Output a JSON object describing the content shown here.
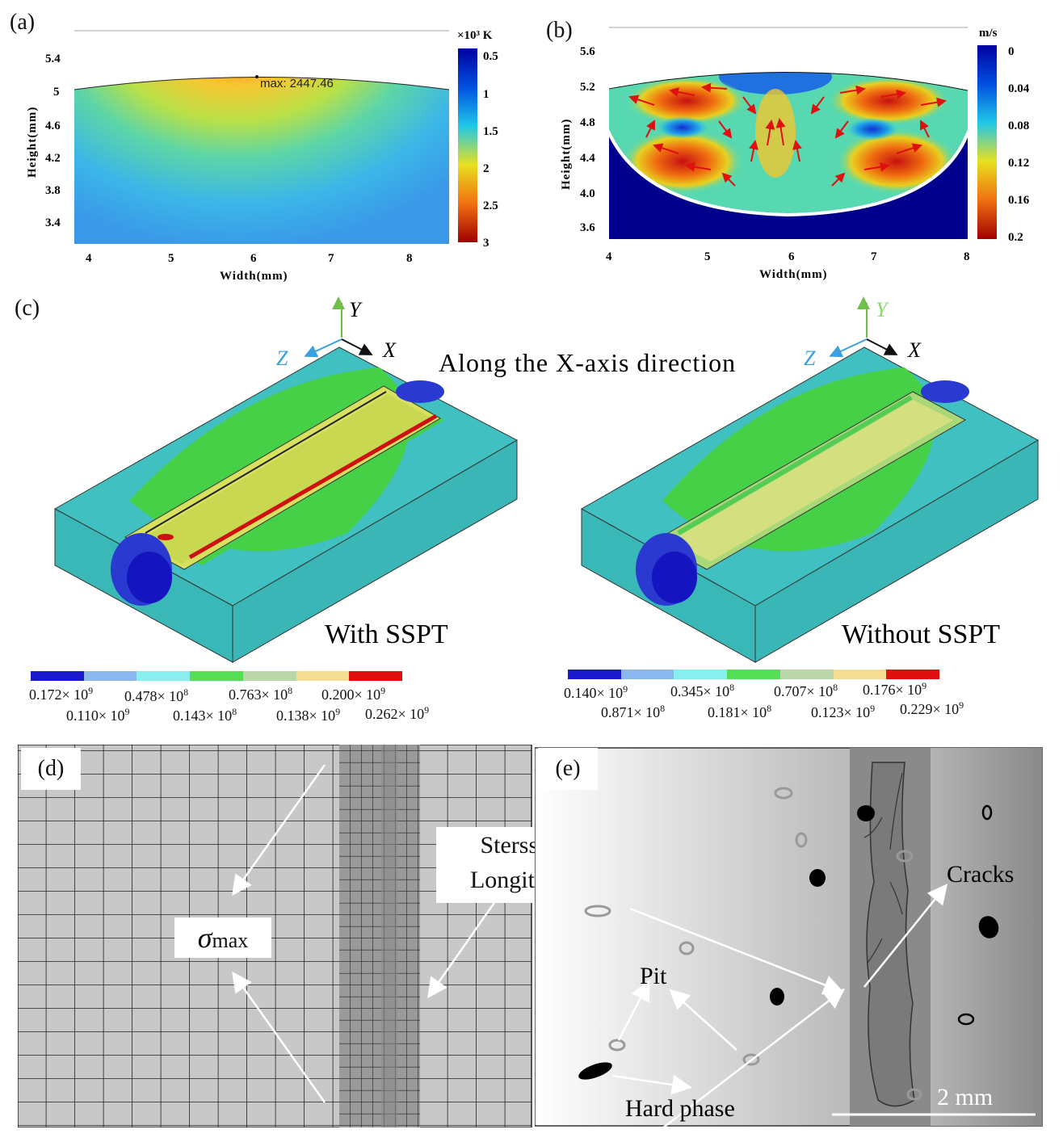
{
  "panels": {
    "a": {
      "label": "(a)",
      "max_annotation": "max: 2447.46",
      "colorbar_unit": "×10³ K",
      "colorbar_ticks": [
        "0.5",
        "1",
        "1.5",
        "2",
        "2.5",
        "3"
      ],
      "y_ticks": [
        "5.4",
        "5",
        "4.6",
        "4.2",
        "3.8",
        "3.4"
      ],
      "x_ticks": [
        "4",
        "5",
        "6",
        "7",
        "8"
      ],
      "xlabel": "Width(mm)",
      "ylabel": "Height(mm)"
    },
    "b": {
      "label": "(b)",
      "colorbar_unit": "m/s",
      "colorbar_ticks": [
        "0",
        "0.04",
        "0.08",
        "0.12",
        "0.16",
        "0.2"
      ],
      "y_ticks": [
        "5.6",
        "5.2",
        "4.8",
        "4.4",
        "4.0",
        "3.6"
      ],
      "x_ticks": [
        "4",
        "5",
        "6",
        "7",
        "8"
      ],
      "xlabel": "Width(mm)",
      "ylabel": "Height(mm)"
    },
    "c": {
      "label": "(c)",
      "direction_text": "Along the X-axis direction",
      "axes": {
        "x": "X",
        "y": "Y",
        "z": "Z"
      },
      "left_caption": "With SSPT",
      "right_caption": "Without SSPT",
      "left_legend": {
        "row1": [
          {
            "m": "0.172",
            "e": "9"
          },
          {
            "m": "0.478",
            "e": "8"
          },
          {
            "m": "0.763",
            "e": "8"
          },
          {
            "m": "0.200",
            "e": "9"
          }
        ],
        "row2": [
          {
            "m": "0.110",
            "e": "9"
          },
          {
            "m": "0.143",
            "e": "8"
          },
          {
            "m": "0.138",
            "e": "9"
          },
          {
            "m": "0.262",
            "e": "9"
          }
        ]
      },
      "right_legend": {
        "row1": [
          {
            "m": "0.140",
            "e": "9"
          },
          {
            "m": "0.345",
            "e": "8"
          },
          {
            "m": "0.707",
            "e": "8"
          },
          {
            "m": "0.176",
            "e": "9"
          }
        ],
        "row2": [
          {
            "m": "0.871",
            "e": "8"
          },
          {
            "m": "0.181",
            "e": "8"
          },
          {
            "m": "0.123",
            "e": "9"
          },
          {
            "m": "0.229",
            "e": "9"
          }
        ]
      },
      "legend_colors": [
        "#1a1acc",
        "#8ab8ee",
        "#88eeee",
        "#55dd55",
        "#bbd6a8",
        "#f4dc90",
        "#e01010"
      ]
    },
    "d": {
      "label": "(d)",
      "sigma_symbol": "σ",
      "sigma_sub": "max",
      "annotation_line1": "Sterss localization(left)",
      "annotation_line2": "Longitudinal crack(right)"
    },
    "e": {
      "label": "(e)",
      "cracks_label": "Cracks",
      "pit_label": "Pit",
      "hard_phase_label": "Hard phase",
      "scale_label": "2 mm"
    }
  }
}
